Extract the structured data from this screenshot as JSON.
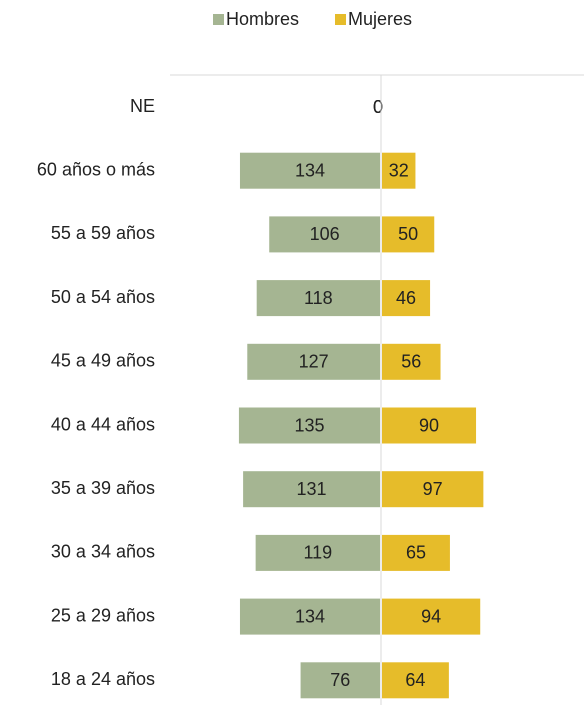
{
  "chart_data": {
    "type": "pyramid",
    "categories": [
      "NE",
      "60 años o más",
      "55 a 59 años",
      "50 a 54 años",
      "45 a 49 años",
      "40 a 44 años",
      "35 a 39 años",
      "30 a 34 años",
      "25 a 29 años",
      "18 a 24 años"
    ],
    "series": [
      {
        "name": "Hombres",
        "color": "#a5b592",
        "values": [
          0,
          134,
          106,
          118,
          127,
          135,
          131,
          119,
          134,
          76
        ]
      },
      {
        "name": "Mujeres",
        "color": "#e6bc2a",
        "values": [
          0,
          32,
          50,
          46,
          56,
          90,
          97,
          65,
          94,
          64
        ]
      }
    ]
  }
}
